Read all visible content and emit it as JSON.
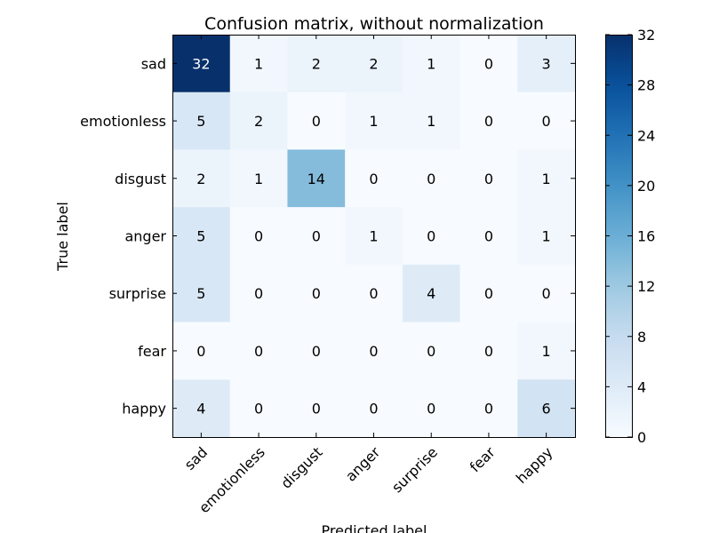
{
  "chart_data": {
    "type": "heatmap",
    "title": "Confusion matrix, without normalization",
    "xlabel": "Predicted label",
    "ylabel": "True label",
    "x_categories": [
      "sad",
      "emotionless",
      "disgust",
      "anger",
      "surprise",
      "fear",
      "happy"
    ],
    "y_categories": [
      "sad",
      "emotionless",
      "disgust",
      "anger",
      "surprise",
      "fear",
      "happy"
    ],
    "values": [
      [
        32,
        1,
        2,
        2,
        1,
        0,
        3
      ],
      [
        5,
        2,
        0,
        1,
        1,
        0,
        0
      ],
      [
        2,
        1,
        14,
        0,
        0,
        0,
        1
      ],
      [
        5,
        0,
        0,
        1,
        0,
        0,
        1
      ],
      [
        5,
        0,
        0,
        0,
        4,
        0,
        0
      ],
      [
        0,
        0,
        0,
        0,
        0,
        0,
        1
      ],
      [
        4,
        0,
        0,
        0,
        0,
        0,
        6
      ]
    ],
    "colormap": "Blues",
    "vmin": 0,
    "vmax": 32,
    "colorbar_ticks": [
      0,
      4,
      8,
      12,
      16,
      20,
      24,
      28,
      32
    ],
    "grid": false
  }
}
